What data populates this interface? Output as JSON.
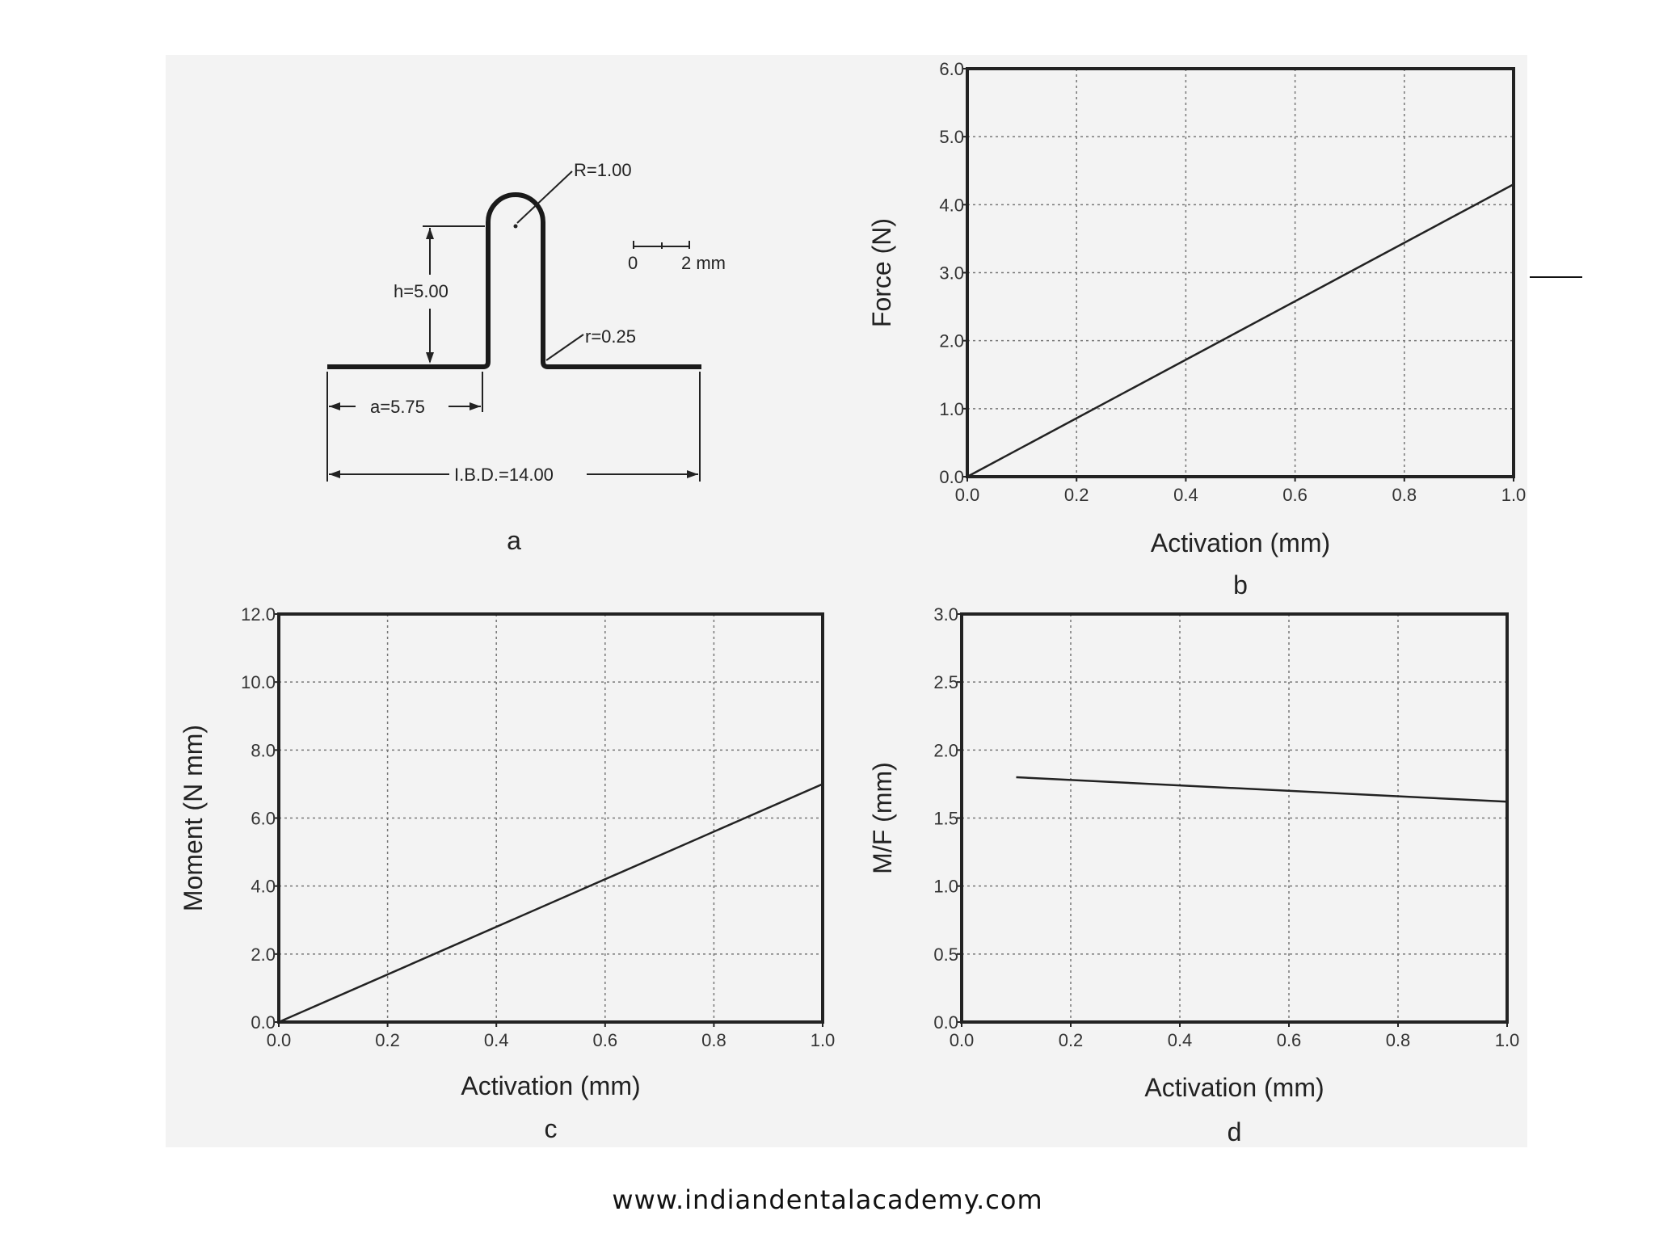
{
  "footer": {
    "url": "www.indiandentalacademy.com"
  },
  "diagram_a": {
    "letter": "a",
    "labels": {
      "R": "R=1.00",
      "h": "h=5.00",
      "r": "r=0.25",
      "a": "a=5.75",
      "ibd": "I.B.D.=14.00",
      "scale_zero": "0",
      "scale_two": "2 mm"
    }
  },
  "chart_data": [
    {
      "id": "b",
      "letter": "b",
      "type": "line",
      "xlabel": "Activation (mm)",
      "ylabel": "Force (N)",
      "xlim": [
        0,
        1
      ],
      "ylim": [
        0,
        6
      ],
      "xticks": [
        "0.0",
        "0.2",
        "0.4",
        "0.6",
        "0.8",
        "1.0"
      ],
      "yticks": [
        "0.0",
        "1.0",
        "2.0",
        "3.0",
        "4.0",
        "5.0",
        "6.0"
      ],
      "grid": true,
      "series": [
        {
          "x": [
            0,
            1
          ],
          "y": [
            0,
            4.3
          ]
        }
      ]
    },
    {
      "id": "c",
      "letter": "c",
      "type": "line",
      "xlabel": "Activation (mm)",
      "ylabel": "Moment (N mm)",
      "xlim": [
        0,
        1
      ],
      "ylim": [
        0,
        12
      ],
      "xticks": [
        "0.0",
        "0.2",
        "0.4",
        "0.6",
        "0.8",
        "1.0"
      ],
      "yticks": [
        "0.0",
        "2.0",
        "4.0",
        "6.0",
        "8.0",
        "10.0",
        "12.0"
      ],
      "grid": true,
      "series": [
        {
          "x": [
            0,
            1
          ],
          "y": [
            0,
            7.0
          ]
        }
      ]
    },
    {
      "id": "d",
      "letter": "d",
      "type": "line",
      "xlabel": "Activation (mm)",
      "ylabel": "M/F (mm)",
      "xlim": [
        0,
        1
      ],
      "ylim": [
        0,
        3
      ],
      "xticks": [
        "0.0",
        "0.2",
        "0.4",
        "0.6",
        "0.8",
        "1.0"
      ],
      "yticks": [
        "0.0",
        "0.5",
        "1.0",
        "1.5",
        "2.0",
        "2.5",
        "3.0"
      ],
      "grid": true,
      "series": [
        {
          "x": [
            0.1,
            1
          ],
          "y": [
            1.8,
            1.62
          ]
        }
      ]
    }
  ]
}
